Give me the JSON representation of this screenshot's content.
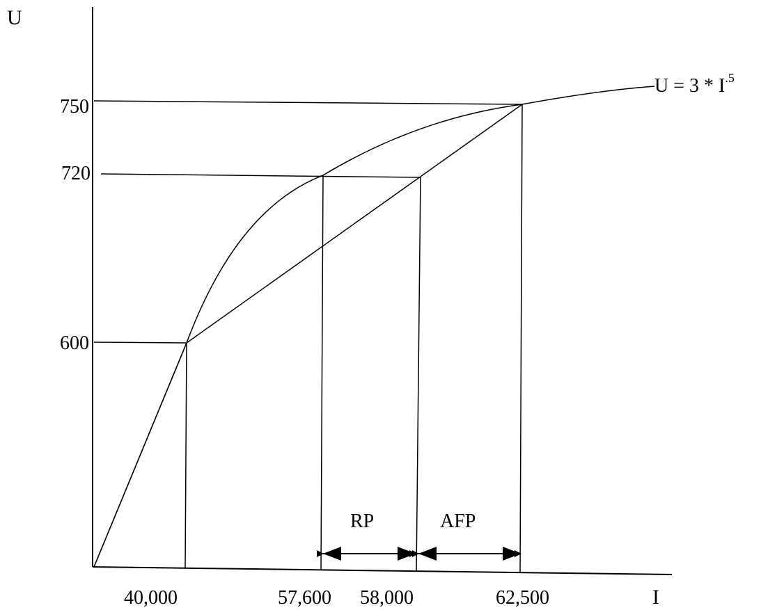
{
  "axes": {
    "y_label": "U",
    "x_label": "I"
  },
  "y_ticks": [
    "750",
    "720",
    "600"
  ],
  "x_ticks": [
    "40,000",
    "57,600",
    "58,000",
    "62,500"
  ],
  "curve_label": {
    "text": "U = 3 * I",
    "superscript": ".5"
  },
  "intervals": {
    "risk_premium": "RP",
    "actuarially_fair_premium": "AFP"
  }
}
